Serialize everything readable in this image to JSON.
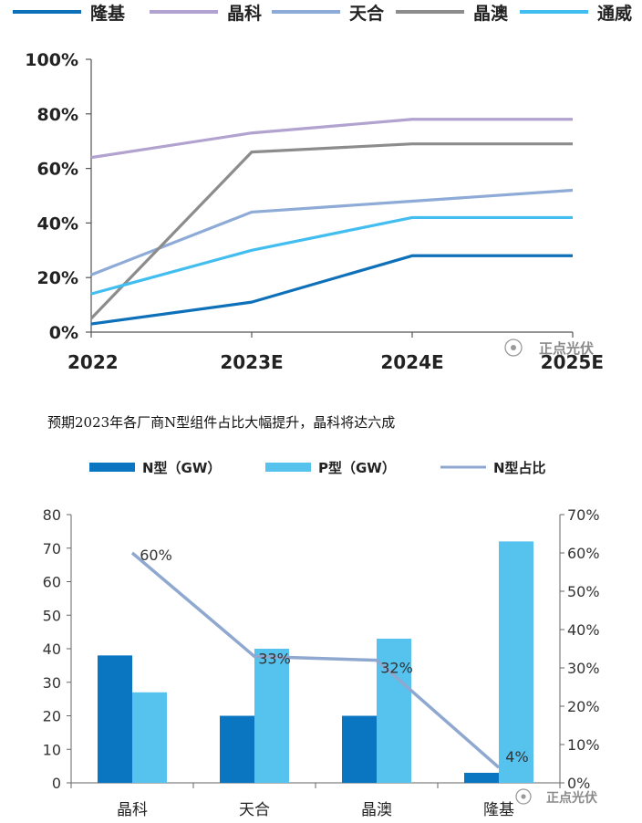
{
  "caption": "预期2023年各厂商N型组件占比大幅提升，晶科将达六成",
  "watermark_text": "正点光伏",
  "colors": {
    "隆基": "#0e70b8",
    "晶科": "#b2a2cf",
    "天合": "#8eaad6",
    "晶澳": "#8c8c8c",
    "通威": "#42bdf0",
    "n_bar": "#0a76c2",
    "p_bar": "#56c2ee",
    "ratio_line": "#8fa8d0"
  },
  "chart_data": [
    {
      "type": "line",
      "title": "",
      "categories": [
        "2022",
        "2023E",
        "2024E",
        "2025E"
      ],
      "yticks": [
        "0%",
        "20%",
        "40%",
        "60%",
        "80%",
        "100%"
      ],
      "ylim": [
        0,
        100
      ],
      "grid": false,
      "legend_position": "top",
      "series": [
        {
          "name": "隆基",
          "values": [
            3,
            11,
            28,
            28
          ]
        },
        {
          "name": "晶科",
          "values": [
            64,
            73,
            78,
            78
          ]
        },
        {
          "name": "天合",
          "values": [
            21,
            44,
            48,
            52
          ]
        },
        {
          "name": "晶澳",
          "values": [
            5,
            66,
            69,
            69
          ]
        },
        {
          "name": "通威",
          "values": [
            14,
            30,
            42,
            42
          ]
        }
      ]
    },
    {
      "type": "bar",
      "categories": [
        "晶科",
        "天合",
        "晶澳",
        "隆基"
      ],
      "legend_position": "top",
      "left_yticks": [
        "0",
        "10",
        "20",
        "30",
        "40",
        "50",
        "60",
        "70",
        "80"
      ],
      "right_yticks": [
        "0%",
        "10%",
        "20%",
        "30%",
        "40%",
        "50%",
        "60%",
        "70%"
      ],
      "ylim_left": [
        0,
        80
      ],
      "ylim_right": [
        0,
        70
      ],
      "series": [
        {
          "name": "N型（GW）",
          "type": "bar",
          "axis": "left",
          "values": [
            38,
            20,
            20,
            3
          ]
        },
        {
          "name": "P型（GW）",
          "type": "bar",
          "axis": "left",
          "values": [
            27,
            40,
            43,
            72
          ]
        },
        {
          "name": "N型占比",
          "type": "line",
          "axis": "right",
          "values": [
            60,
            33,
            32,
            4
          ],
          "labels": [
            "60%",
            "33%",
            "32%",
            "4%"
          ]
        }
      ]
    }
  ]
}
